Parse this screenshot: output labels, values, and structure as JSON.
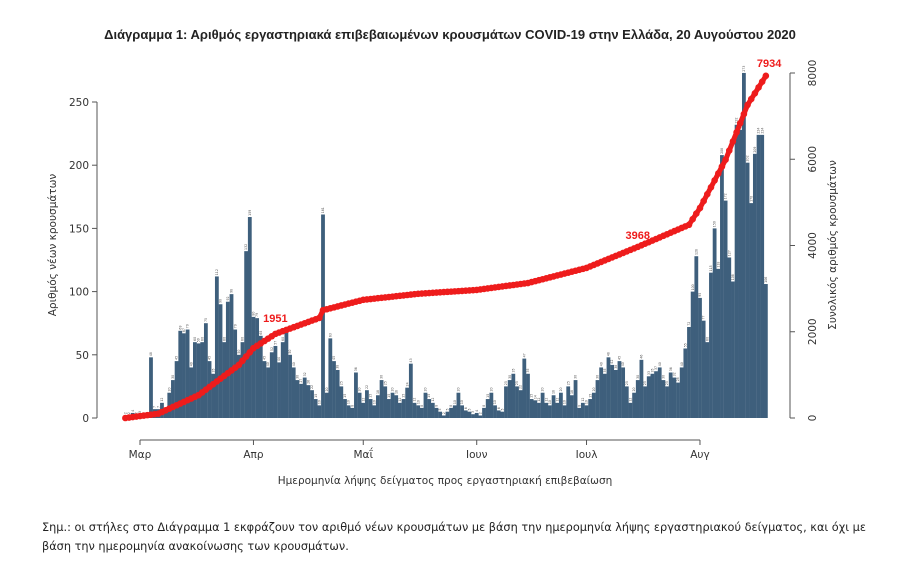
{
  "chart_data": {
    "type": "bar",
    "title": "Διάγραμμα 1: Αριθμός εργαστηριακά επιβεβαιωμένων κρουσμάτων COVID-19 στην Ελλάδα, 20 Αυγούστου 2020",
    "xlabel": "Ημερομηνία λήψης δείγματος προς εργαστηριακή επιβεβαίωση",
    "ylabel": "Αριθμός νέων κρουσμάτων",
    "y2label": "Συνολικός αριθμός κρουσμάτων",
    "ylim": [
      0,
      280
    ],
    "y2lim": [
      0,
      8000
    ],
    "yticks": [
      "0",
      "50",
      "100",
      "150",
      "200",
      "250"
    ],
    "y2ticks": [
      "0",
      "2000",
      "4000",
      "6000",
      "8000"
    ],
    "xticks": [
      {
        "label": "Μαρ",
        "date": "2020-03-01"
      },
      {
        "label": "Απρ",
        "date": "2020-04-01"
      },
      {
        "label": "Μαΐ",
        "date": "2020-05-01"
      },
      {
        "label": "Ιουν",
        "date": "2020-06-01"
      },
      {
        "label": "Ιουλ",
        "date": "2020-07-01"
      },
      {
        "label": "Αυγ",
        "date": "2020-08-01"
      }
    ],
    "grid": false,
    "colors": {
      "bars": "#3e5f7c",
      "cumulative": "#ee1c1c"
    },
    "daily_new_cases": [
      {
        "month": "2020-02",
        "first_day": 26,
        "values": [
          2,
          2,
          4,
          2
        ]
      },
      {
        "month": "2020-03",
        "first_day": 1,
        "values": [
          3,
          2,
          2,
          48,
          7,
          7,
          12,
          6,
          20,
          30,
          45,
          69,
          67,
          70,
          40,
          60,
          59,
          60,
          75,
          45,
          35,
          112,
          90,
          60,
          92,
          98,
          70,
          50,
          60,
          132,
          159
        ]
      },
      {
        "month": "2020-04",
        "first_day": 1,
        "values": [
          80,
          79,
          65,
          45,
          40,
          52,
          57,
          44,
          60,
          68,
          50,
          40,
          30,
          27,
          32,
          26,
          22,
          15,
          10,
          161,
          20,
          63,
          45,
          38,
          25,
          15,
          10,
          8,
          36,
          20
        ]
      },
      {
        "month": "2020-05",
        "first_day": 1,
        "values": [
          12,
          22,
          15,
          10,
          18,
          30,
          25,
          15,
          20,
          18,
          12,
          15,
          24,
          43,
          12,
          10,
          8,
          20,
          15,
          12,
          8,
          5,
          2,
          5,
          8,
          10,
          20,
          10,
          6,
          5,
          3
        ]
      },
      {
        "month": "2020-06",
        "first_day": 1,
        "values": [
          4,
          2,
          8,
          15,
          20,
          10,
          6,
          5,
          25,
          30,
          35,
          25,
          22,
          47,
          35,
          15,
          14,
          12,
          20,
          12,
          10,
          18,
          12,
          20,
          10,
          25,
          18,
          30,
          8,
          12
        ]
      },
      {
        "month": "2020-07",
        "first_day": 1,
        "values": [
          10,
          15,
          20,
          30,
          40,
          35,
          48,
          42,
          38,
          45,
          40,
          25,
          12,
          20,
          30,
          46,
          25,
          33,
          35,
          37,
          40,
          30,
          25,
          36,
          32,
          28,
          40,
          55,
          72,
          100,
          128
        ]
      },
      {
        "month": "2020-08",
        "first_day": 1,
        "values": [
          95,
          77,
          60,
          115,
          150,
          118,
          208,
          172,
          127,
          108,
          232,
          228,
          273,
          202,
          170,
          209,
          224,
          224,
          106
        ]
      }
    ],
    "cumulative_cases": [
      [
        "2020-02-26",
        0
      ],
      [
        "2020-03-06",
        100
      ],
      [
        "2020-03-17",
        530
      ],
      [
        "2020-03-28",
        1230
      ],
      [
        "2020-04-01",
        1620
      ],
      [
        "2020-04-07",
        1951
      ],
      [
        "2020-04-19",
        2320
      ],
      [
        "2020-04-20",
        2500
      ],
      [
        "2020-05-01",
        2740
      ],
      [
        "2020-05-16",
        2880
      ],
      [
        "2020-06-01",
        2970
      ],
      [
        "2020-06-15",
        3130
      ],
      [
        "2020-07-01",
        3480
      ],
      [
        "2020-07-15",
        3968
      ],
      [
        "2020-07-29",
        4480
      ],
      [
        "2020-08-01",
        4870
      ],
      [
        "2020-08-08",
        5990
      ],
      [
        "2020-08-14",
        7260
      ],
      [
        "2020-08-19",
        7934
      ]
    ],
    "annotations": [
      {
        "date": "2020-04-07",
        "value": 1951,
        "label": "1951"
      },
      {
        "date": "2020-07-15",
        "value": 3968,
        "label": "3968"
      },
      {
        "date": "2020-08-19",
        "value": 7934,
        "label": "7934"
      }
    ]
  },
  "footnote": {
    "line1": "Σημ.: οι στήλες στο Διάγραμμα 1 εκφράζουν τον αριθμό νέων κρουσμάτων με βάση την ημερομηνία λήψης εργαστηριακού δείγματος, και όχι με",
    "line2": "βάση την ημερομηνία ανακοίνωσης των κρουσμάτων."
  }
}
